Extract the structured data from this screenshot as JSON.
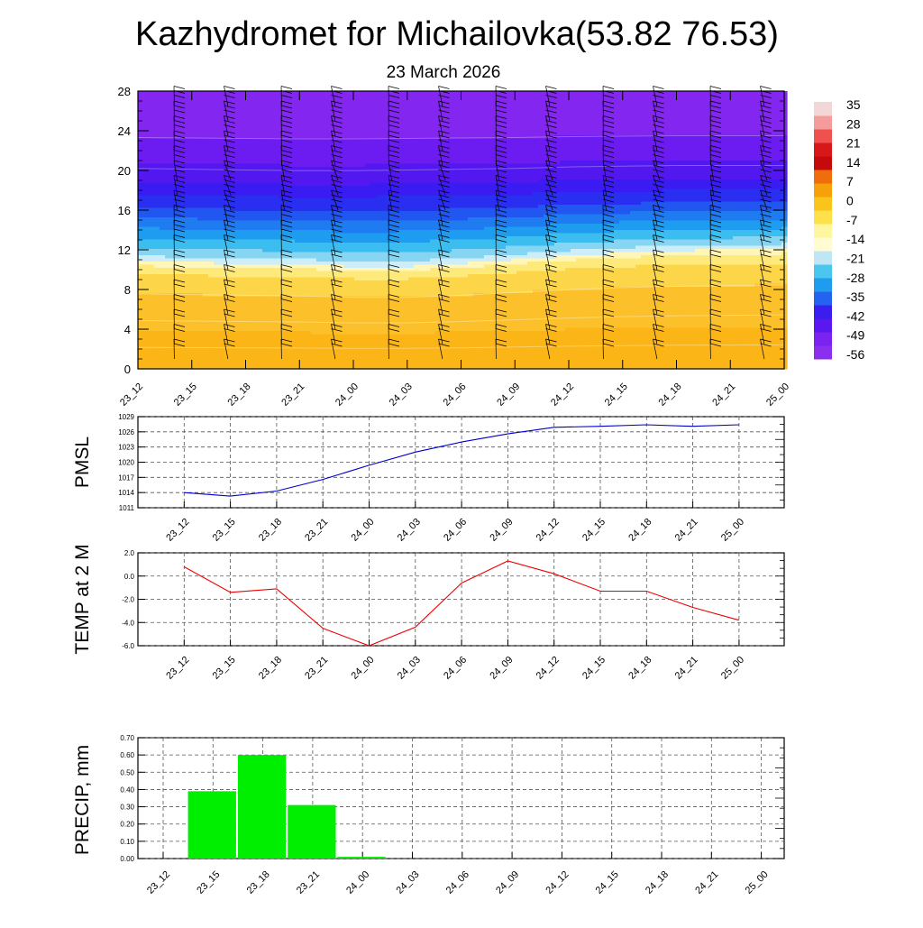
{
  "title": "Kazhydromet for Michailovka(53.82 76.53)",
  "subtitle": "23 March 2026",
  "time_labels": [
    "23_12",
    "23_15",
    "23_18",
    "23_21",
    "24_00",
    "24_03",
    "24_06",
    "24_09",
    "24_12",
    "24_15",
    "24_18",
    "24_21",
    "25_00"
  ],
  "chart_data": [
    {
      "type": "heatmap",
      "name": "temperature-cross-section",
      "y_ticks": [
        0,
        4,
        8,
        12,
        16,
        20,
        24,
        28
      ],
      "ylim": [
        0,
        28
      ],
      "colorbar_labels": [
        "35",
        "28",
        "21",
        "14",
        "7",
        "0",
        "-7",
        "-14",
        "-21",
        "-28",
        "-35",
        "-42",
        "-49",
        "-56"
      ],
      "colorbar_colors": [
        "#f2d7d7",
        "#f49b9b",
        "#ef5050",
        "#d81818",
        "#c40a0a",
        "#f06d0c",
        "#f7a10a",
        "#fbc41b",
        "#fde04a",
        "#fef7a0",
        "#fffbd2",
        "#bfe6f5",
        "#4cc6ee",
        "#1f9cee",
        "#2463f0",
        "#3a1ef0",
        "#5a18f0",
        "#7a22f0",
        "#8a2ef0"
      ],
      "freezing_level_by_time": [
        10.8,
        10.7,
        10.6,
        10.5,
        10.3,
        10.3,
        10.6,
        11.0,
        11.4,
        11.7,
        11.9,
        12.0,
        12.1
      ],
      "tropopause_by_time": [
        17.6,
        17.5,
        17.4,
        17.3,
        17.3,
        17.4,
        17.5,
        17.6,
        17.8,
        17.9,
        18.0,
        18.0,
        18.0
      ]
    },
    {
      "type": "line",
      "name": "PMSL",
      "ylabel": "PMSL",
      "color": "#0000cc",
      "y_ticks": [
        "1011",
        "1014",
        "1017",
        "1020",
        "1023",
        "1026",
        "1029"
      ],
      "ylim": [
        1011,
        1029
      ],
      "values": [
        1014.0,
        1013.3,
        1014.3,
        1016.6,
        1019.4,
        1022.0,
        1024.0,
        1025.6,
        1026.9,
        1027.1,
        1027.4,
        1027.1,
        1027.4
      ]
    },
    {
      "type": "line",
      "name": "TEMP at 2 M",
      "ylabel": "TEMP at 2 M",
      "color": "#ee0000",
      "y_ticks": [
        "-6.0",
        "-4.0",
        "-2.0",
        "0.0",
        "2.0"
      ],
      "ylim": [
        -6,
        2
      ],
      "values": [
        0.8,
        -1.4,
        -1.1,
        -4.5,
        -6.0,
        -4.4,
        -0.6,
        1.3,
        0.2,
        -1.3,
        -1.3,
        -2.7,
        -3.8
      ]
    },
    {
      "type": "bar",
      "name": "PRECIP, mm",
      "ylabel": "PRECIP, mm",
      "color": "#00ee00",
      "y_ticks": [
        "0.00",
        "0.10",
        "0.20",
        "0.30",
        "0.40",
        "0.50",
        "0.60",
        "0.70"
      ],
      "ylim": [
        0,
        0.7
      ],
      "values": [
        0.0,
        0.39,
        0.6,
        0.31,
        0.01,
        0,
        0,
        0,
        0,
        0,
        0,
        0,
        0
      ]
    }
  ]
}
